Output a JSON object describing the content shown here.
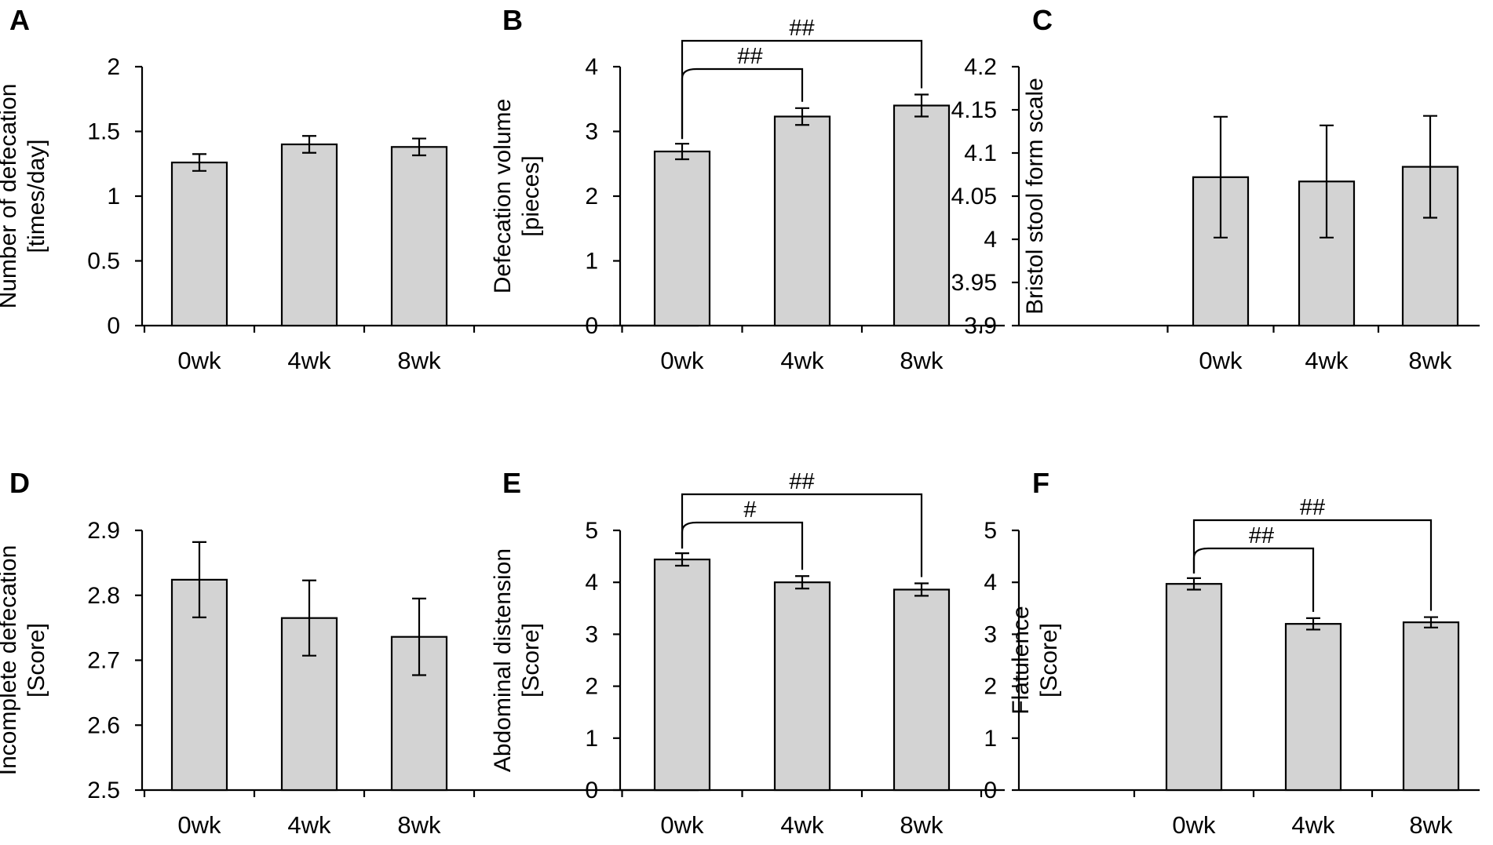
{
  "colors": {
    "bar_fill": "#d3d3d3",
    "bar_stroke": "#000000",
    "axis": "#000000",
    "text": "#000000"
  },
  "chart_data": [
    {
      "panel": "A",
      "type": "bar",
      "categories": [
        "0wk",
        "4wk",
        "8wk"
      ],
      "values": [
        1.26,
        1.4,
        1.38
      ],
      "errors": [
        0.065,
        0.065,
        0.065
      ],
      "ylabel": [
        "Number of defecation",
        "[times/day]"
      ],
      "ylim": [
        0,
        2
      ],
      "yticks": [
        0,
        0.5,
        1,
        1.5,
        2
      ],
      "ytick_labels": [
        "0",
        "0.5",
        "1",
        "1.5",
        "2"
      ],
      "significance": []
    },
    {
      "panel": "B",
      "type": "bar",
      "categories": [
        "0wk",
        "4wk",
        "8wk"
      ],
      "values": [
        2.69,
        3.23,
        3.4
      ],
      "errors": [
        0.12,
        0.13,
        0.17
      ],
      "ylabel": [
        "Defecation volume",
        "[pieces]"
      ],
      "ylim": [
        0,
        4
      ],
      "yticks": [
        0,
        1,
        2,
        3,
        4
      ],
      "ytick_labels": [
        "0",
        "1",
        "2",
        "3",
        "4"
      ],
      "significance": [
        {
          "from": 0,
          "to": 1,
          "label": "##"
        },
        {
          "from": 0,
          "to": 2,
          "label": "##"
        }
      ]
    },
    {
      "panel": "C",
      "type": "bar",
      "categories": [
        "0wk",
        "4wk",
        "8wk"
      ],
      "values": [
        4.072,
        4.067,
        4.084
      ],
      "errors": [
        0.07,
        0.065,
        0.059
      ],
      "ylabel": [
        "Bristol stool form scale"
      ],
      "ylim": [
        3.9,
        4.2
      ],
      "yticks": [
        3.9,
        3.95,
        4.0,
        4.05,
        4.1,
        4.15,
        4.2
      ],
      "ytick_labels": [
        "3.9",
        "3.95",
        "4",
        "4.05",
        "4.1",
        "4.15",
        "4.2"
      ],
      "significance": []
    },
    {
      "panel": "D",
      "type": "bar",
      "categories": [
        "0wk",
        "4wk",
        "8wk"
      ],
      "values": [
        2.824,
        2.765,
        2.736
      ],
      "errors": [
        0.058,
        0.058,
        0.059
      ],
      "ylabel": [
        "Incomplete defecation",
        "[Score]"
      ],
      "ylim": [
        2.5,
        2.9
      ],
      "yticks": [
        2.5,
        2.6,
        2.7,
        2.8,
        2.9
      ],
      "ytick_labels": [
        "2.5",
        "2.6",
        "2.7",
        "2.8",
        "2.9"
      ],
      "significance": []
    },
    {
      "panel": "E",
      "type": "bar",
      "categories": [
        "0wk",
        "4wk",
        "8wk"
      ],
      "values": [
        4.44,
        4.0,
        3.86
      ],
      "errors": [
        0.12,
        0.12,
        0.12
      ],
      "ylabel": [
        "Abdominal distension",
        "[Score]"
      ],
      "ylim": [
        0,
        5
      ],
      "yticks": [
        0,
        1,
        2,
        3,
        4,
        5
      ],
      "ytick_labels": [
        "0",
        "1",
        "2",
        "3",
        "4",
        "5"
      ],
      "significance": [
        {
          "from": 0,
          "to": 1,
          "label": "#"
        },
        {
          "from": 0,
          "to": 2,
          "label": "##"
        }
      ]
    },
    {
      "panel": "F",
      "type": "bar",
      "categories": [
        "0wk",
        "4wk",
        "8wk"
      ],
      "values": [
        3.97,
        3.2,
        3.23
      ],
      "errors": [
        0.11,
        0.11,
        0.1
      ],
      "ylabel": [
        "Flatulence",
        "[Score]"
      ],
      "ylim": [
        0,
        5
      ],
      "yticks": [
        0,
        1,
        2,
        3,
        4,
        5
      ],
      "ytick_labels": [
        "0",
        "1",
        "2",
        "3",
        "4",
        "5"
      ],
      "significance": [
        {
          "from": 0,
          "to": 1,
          "label": "##"
        },
        {
          "from": 0,
          "to": 2,
          "label": "##"
        }
      ]
    }
  ]
}
